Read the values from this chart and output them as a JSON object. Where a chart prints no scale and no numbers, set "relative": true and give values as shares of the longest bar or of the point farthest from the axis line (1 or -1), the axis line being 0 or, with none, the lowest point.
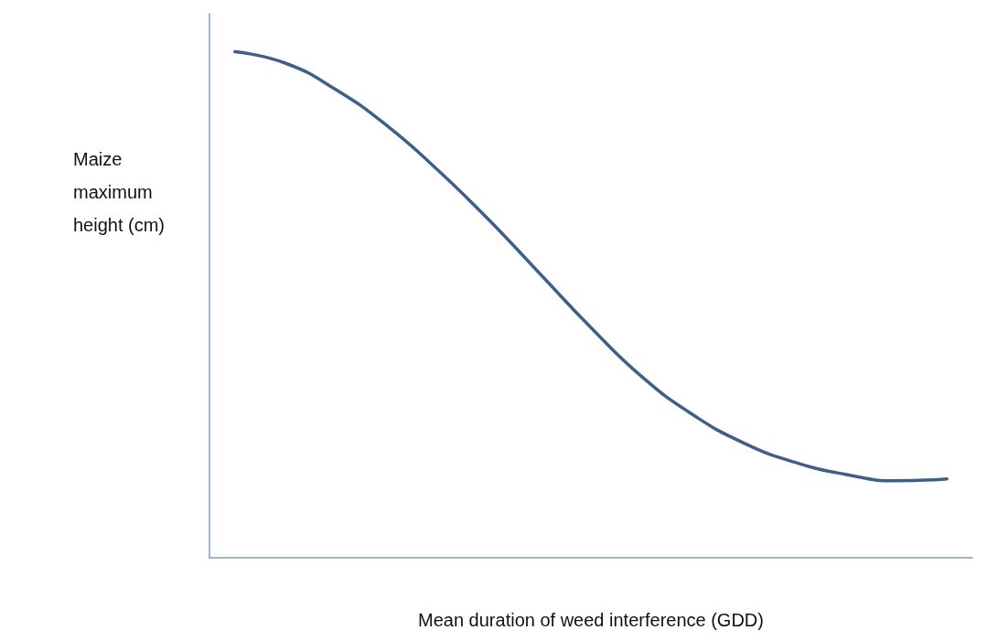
{
  "chart_data": {
    "type": "line",
    "relative": true,
    "xlabel": "Mean duration of weed interference (GDD)",
    "ylabel": "Maize maximum height (cm)",
    "categories": [
      null,
      null,
      null,
      null,
      null,
      null,
      null,
      null,
      null,
      null,
      null,
      null,
      null,
      null,
      null
    ],
    "series": [
      {
        "color": "#3f5f8a",
        "values": [
          1.0,
          0.977,
          0.924,
          0.853,
          0.765,
          0.667,
          0.561,
          0.455,
          0.358,
          0.283,
          0.227,
          0.189,
          0.165,
          0.152,
          0.156
        ]
      }
    ],
    "marker": "none",
    "line_style": "solid",
    "grid": false
  }
}
